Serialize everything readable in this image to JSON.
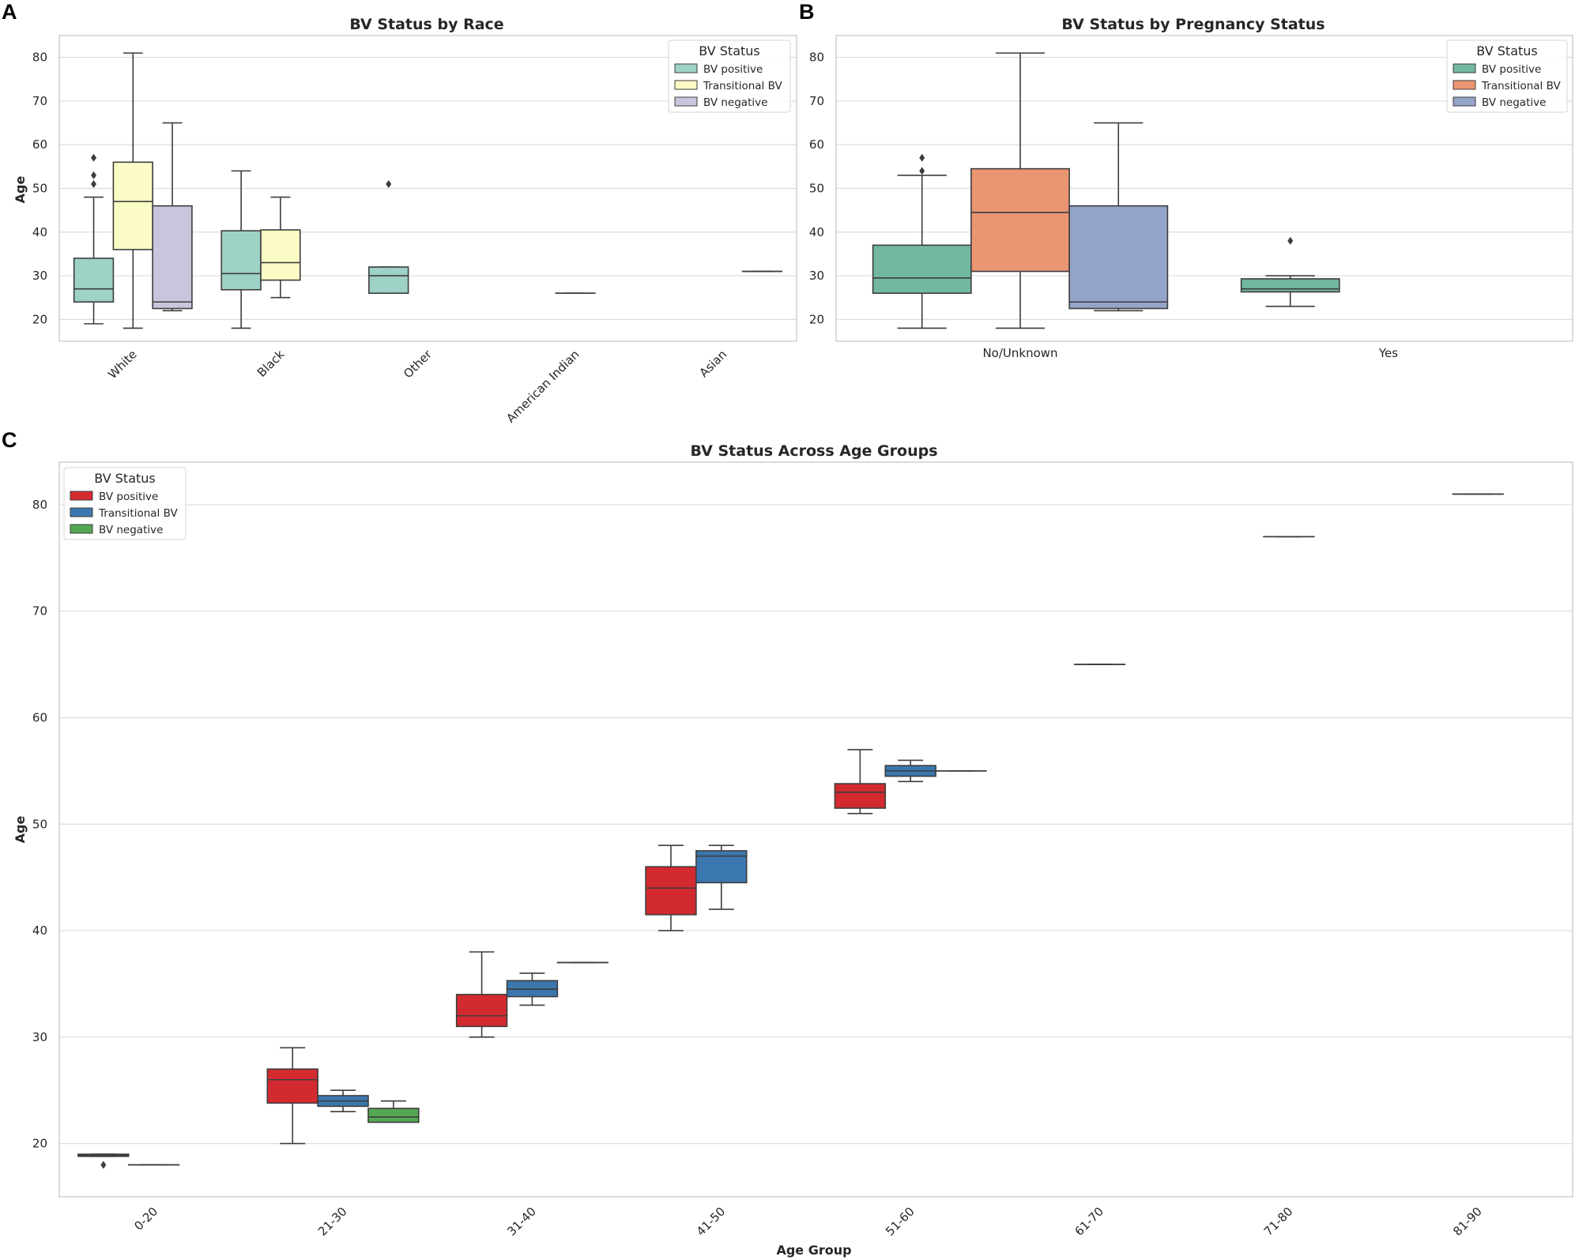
{
  "panels": {
    "a": "A",
    "b": "B",
    "c": "C"
  },
  "legend_title": "BV Status",
  "series_names": [
    "BV positive",
    "Transitional BV",
    "BV negative"
  ],
  "chart_data": [
    {
      "id": "A",
      "type": "box",
      "title": "BV Status by Race",
      "xlabel": "",
      "ylabel": "Age",
      "ylim": [
        15,
        85
      ],
      "yticks": [
        20,
        30,
        40,
        50,
        60,
        70,
        80
      ],
      "categories": [
        "White",
        "Black",
        "Other",
        "American Indian",
        "Asian"
      ],
      "tick_rotation": -45,
      "colors": [
        "#9ed2c6",
        "#fbfbc5",
        "#c9c5dc"
      ],
      "boxes": [
        {
          "cat": 0,
          "series": 0,
          "min": 19,
          "q1": 24,
          "median": 27,
          "q3": 34,
          "max": 48,
          "outliers": [
            51,
            53,
            57
          ]
        },
        {
          "cat": 0,
          "series": 1,
          "min": 18,
          "q1": 36,
          "median": 47,
          "q3": 56,
          "max": 81,
          "outliers": []
        },
        {
          "cat": 0,
          "series": 2,
          "min": 22,
          "q1": 22.5,
          "median": 24,
          "q3": 46,
          "max": 65,
          "outliers": []
        },
        {
          "cat": 1,
          "series": 0,
          "min": 18,
          "q1": 26.8,
          "median": 30.5,
          "q3": 40.3,
          "max": 54,
          "outliers": []
        },
        {
          "cat": 1,
          "series": 1,
          "min": 25,
          "q1": 29,
          "median": 33,
          "q3": 40.5,
          "max": 48,
          "outliers": []
        },
        {
          "cat": 2,
          "series": 0,
          "min": 26,
          "q1": 26,
          "median": 30,
          "q3": 32,
          "max": 32,
          "outliers": [
            51
          ]
        },
        {
          "cat": 3,
          "series": 1,
          "min": 26,
          "q1": 26,
          "median": 26,
          "q3": 26,
          "max": 26,
          "outliers": []
        },
        {
          "cat": 4,
          "series": 2,
          "min": 31,
          "q1": 31,
          "median": 31,
          "q3": 31,
          "max": 31,
          "outliers": []
        }
      ]
    },
    {
      "id": "B",
      "type": "box",
      "title": "BV Status by Pregnancy Status",
      "xlabel": "",
      "ylabel": "",
      "ylim": [
        15,
        85
      ],
      "yticks": [
        20,
        30,
        40,
        50,
        60,
        70,
        80
      ],
      "categories": [
        "No/Unknown",
        "Yes"
      ],
      "tick_rotation": 0,
      "colors": [
        "#72b7a0",
        "#eb9673",
        "#94a3c8"
      ],
      "boxes": [
        {
          "cat": 0,
          "series": 0,
          "min": 18,
          "q1": 26,
          "median": 29.5,
          "q3": 37,
          "max": 53,
          "outliers": [
            54,
            57
          ]
        },
        {
          "cat": 0,
          "series": 1,
          "min": 18,
          "q1": 31,
          "median": 44.5,
          "q3": 54.5,
          "max": 81,
          "outliers": []
        },
        {
          "cat": 0,
          "series": 2,
          "min": 22,
          "q1": 22.5,
          "median": 24,
          "q3": 46,
          "max": 65,
          "outliers": []
        },
        {
          "cat": 1,
          "series": 0,
          "min": 23,
          "q1": 26.3,
          "median": 27,
          "q3": 29.3,
          "max": 30,
          "outliers": [
            38
          ]
        }
      ]
    },
    {
      "id": "C",
      "type": "box",
      "title": "BV Status Across Age Groups",
      "xlabel": "Age Group",
      "ylabel": "Age",
      "ylim": [
        15,
        84
      ],
      "yticks": [
        20,
        30,
        40,
        50,
        60,
        70,
        80
      ],
      "categories": [
        "0-20",
        "21-30",
        "31-40",
        "41-50",
        "51-60",
        "61-70",
        "71-80",
        "81-90"
      ],
      "tick_rotation": -45,
      "colors": [
        "#d32a30",
        "#3b77af",
        "#54a653"
      ],
      "boxes": [
        {
          "cat": 0,
          "series": 0,
          "min": 18.8,
          "q1": 18.8,
          "median": 18.9,
          "q3": 19,
          "max": 19,
          "outliers": [
            18
          ]
        },
        {
          "cat": 0,
          "series": 1,
          "min": 18,
          "q1": 18,
          "median": 18,
          "q3": 18,
          "max": 18,
          "outliers": []
        },
        {
          "cat": 1,
          "series": 0,
          "min": 20,
          "q1": 23.8,
          "median": 26,
          "q3": 27,
          "max": 29,
          "outliers": []
        },
        {
          "cat": 1,
          "series": 1,
          "min": 23,
          "q1": 23.5,
          "median": 24,
          "q3": 24.5,
          "max": 25,
          "outliers": []
        },
        {
          "cat": 1,
          "series": 2,
          "min": 22,
          "q1": 22,
          "median": 22.5,
          "q3": 23.3,
          "max": 24,
          "outliers": []
        },
        {
          "cat": 2,
          "series": 0,
          "min": 30,
          "q1": 31,
          "median": 32,
          "q3": 34,
          "max": 38,
          "outliers": []
        },
        {
          "cat": 2,
          "series": 1,
          "min": 33,
          "q1": 33.8,
          "median": 34.5,
          "q3": 35.3,
          "max": 36,
          "outliers": []
        },
        {
          "cat": 2,
          "series": 2,
          "min": 37,
          "q1": 37,
          "median": 37,
          "q3": 37,
          "max": 37,
          "outliers": []
        },
        {
          "cat": 3,
          "series": 0,
          "min": 40,
          "q1": 41.5,
          "median": 44,
          "q3": 46,
          "max": 48,
          "outliers": []
        },
        {
          "cat": 3,
          "series": 1,
          "min": 42,
          "q1": 44.5,
          "median": 47,
          "q3": 47.5,
          "max": 48,
          "outliers": []
        },
        {
          "cat": 4,
          "series": 0,
          "min": 51,
          "q1": 51.5,
          "median": 53,
          "q3": 53.8,
          "max": 57,
          "outliers": []
        },
        {
          "cat": 4,
          "series": 1,
          "min": 54,
          "q1": 54.5,
          "median": 55,
          "q3": 55.5,
          "max": 56,
          "outliers": []
        },
        {
          "cat": 4,
          "series": 2,
          "min": 55,
          "q1": 55,
          "median": 55,
          "q3": 55,
          "max": 55,
          "outliers": []
        },
        {
          "cat": 5,
          "series": 1,
          "min": 65,
          "q1": 65,
          "median": 65,
          "q3": 65,
          "max": 65,
          "outliers": []
        },
        {
          "cat": 6,
          "series": 1,
          "min": 77,
          "q1": 77,
          "median": 77,
          "q3": 77,
          "max": 77,
          "outliers": []
        },
        {
          "cat": 7,
          "series": 1,
          "min": 81,
          "q1": 81,
          "median": 81,
          "q3": 81,
          "max": 81,
          "outliers": []
        }
      ]
    }
  ]
}
